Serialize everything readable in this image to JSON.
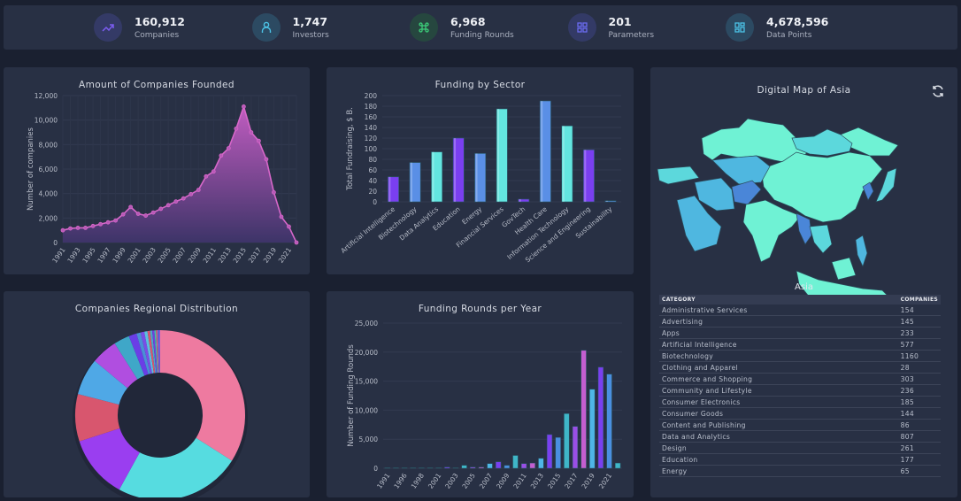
{
  "stats": [
    {
      "value": "160,912",
      "label": "Companies",
      "icon": "trending-up-icon",
      "color": "#7b5cf0",
      "bg": "#343a66"
    },
    {
      "value": "1,747",
      "label": "Investors",
      "icon": "user-icon",
      "color": "#4cc3e6",
      "bg": "#2c4a62"
    },
    {
      "value": "6,968",
      "label": "Funding Rounds",
      "icon": "command-icon",
      "color": "#3ccf7a",
      "bg": "#26473f"
    },
    {
      "value": "201",
      "label": "Parameters",
      "icon": "grid-icon",
      "color": "#6b6cf0",
      "bg": "#333a66"
    },
    {
      "value": "4,678,596",
      "label": "Data Points",
      "icon": "layout-icon",
      "color": "#4cc3e6",
      "bg": "#2c4a62"
    }
  ],
  "map": {
    "title": "Digital Map of Asia",
    "region_label": "Asia",
    "refresh_icon": "refresh-icon"
  },
  "table": {
    "headers": [
      "CATEGORY",
      "COMPANIES"
    ],
    "rows": [
      [
        "Administrative Services",
        "154"
      ],
      [
        "Advertising",
        "145"
      ],
      [
        "Apps",
        "233"
      ],
      [
        "Artificial Intelligence",
        "577"
      ],
      [
        "Biotechnology",
        "1160"
      ],
      [
        "Clothing and Apparel",
        "28"
      ],
      [
        "Commerce and Shopping",
        "303"
      ],
      [
        "Community and Lifestyle",
        "236"
      ],
      [
        "Consumer Electronics",
        "185"
      ],
      [
        "Consumer Goods",
        "144"
      ],
      [
        "Content and Publishing",
        "86"
      ],
      [
        "Data and Analytics",
        "807"
      ],
      [
        "Design",
        "261"
      ],
      [
        "Education",
        "177"
      ],
      [
        "Energy",
        "65"
      ]
    ]
  },
  "chart_data": [
    {
      "type": "area",
      "title": "Amount of Companies Founded",
      "ylabel": "Number of companies",
      "ylim": [
        0,
        12000
      ],
      "yticks": [
        "0",
        "2,000",
        "4,000",
        "6,000",
        "8,000",
        "10,000",
        "12,000"
      ],
      "grid": true,
      "color": "#d667c9",
      "x": [
        1991,
        1992,
        1993,
        1994,
        1995,
        1996,
        1997,
        1998,
        1999,
        2000,
        2001,
        2002,
        2003,
        2004,
        2005,
        2006,
        2007,
        2008,
        2009,
        2010,
        2011,
        2012,
        2013,
        2014,
        2015,
        2016,
        2017,
        2018,
        2019,
        2020,
        2021,
        2022
      ],
      "values": [
        1000,
        1150,
        1200,
        1200,
        1350,
        1500,
        1650,
        1800,
        2300,
        2900,
        2350,
        2200,
        2450,
        2750,
        3050,
        3350,
        3600,
        3950,
        4300,
        5400,
        5800,
        7100,
        7700,
        9300,
        11100,
        9000,
        8300,
        6800,
        4100,
        2100,
        1300,
        0
      ],
      "xticks": [
        "1991",
        "1993",
        "1995",
        "1997",
        "1999",
        "2001",
        "2003",
        "2005",
        "2007",
        "2009",
        "2011",
        "2013",
        "2015",
        "2017",
        "2019",
        "2021"
      ]
    },
    {
      "type": "bar",
      "title": "Funding by Sector",
      "ylabel": "Total Fundraising, $ B.",
      "ylim": [
        0,
        200
      ],
      "yticks": [
        "0",
        "20",
        "40",
        "60",
        "80",
        "100",
        "120",
        "140",
        "160",
        "180",
        "200"
      ],
      "grid": true,
      "categories": [
        "Artificial Intelligence",
        "Biotechnology",
        "Data Analytics",
        "Education",
        "Energy",
        "Financial Services",
        "GovTech",
        "Health Care",
        "Information Technology",
        "Science and Engineering",
        "Sustainability"
      ],
      "values": [
        47,
        74,
        94,
        120,
        91,
        175,
        5,
        190,
        143,
        98,
        2
      ],
      "colors": [
        "#7a3ff0",
        "#5a8fe6",
        "#63e6e0",
        "#7a3ff0",
        "#5a8fe6",
        "#63e6e0",
        "#7a3ff0",
        "#5a8fe6",
        "#63e6e0",
        "#7a3ff0",
        "#5a8fe6"
      ]
    },
    {
      "type": "pie",
      "title": "Companies Regional Distribution",
      "donut": true,
      "values": [
        34,
        24,
        12,
        9,
        7,
        5,
        3,
        1.5,
        0.8,
        0.7,
        0.6,
        0.5,
        0.4,
        0.4,
        0.3,
        0.3,
        0.3,
        0.2
      ],
      "colors": [
        "#ee7aa0",
        "#56dce0",
        "#9a3ef0",
        "#d8566e",
        "#4fa8e6",
        "#b04ee0",
        "#3fa7c8",
        "#6a3ee6",
        "#4a8fd6",
        "#7a4ee6",
        "#5ac0e0",
        "#d8566e",
        "#4ea8c8",
        "#7040e0",
        "#3fc0b0",
        "#d85a80",
        "#5a70e0",
        "#8a50e0"
      ]
    },
    {
      "type": "bar",
      "title": "Funding Rounds per Year",
      "ylabel": "Number of Funding Rounds",
      "ylim": [
        0,
        25000
      ],
      "yticks": [
        "0",
        "5,000",
        "10,000",
        "15,000",
        "20,000",
        "25,000"
      ],
      "grid": true,
      "categories": [
        "1991",
        "1995",
        "1996",
        "1997",
        "1998",
        "2000",
        "2001",
        "2002",
        "2003",
        "2004",
        "2005",
        "2006",
        "2007",
        "2008",
        "2009",
        "2010",
        "2011",
        "2012",
        "2013",
        "2014",
        "2015",
        "2016",
        "2017",
        "2018",
        "2019",
        "2020",
        "2021",
        "2022"
      ],
      "values": [
        20,
        20,
        20,
        20,
        20,
        10,
        0,
        200,
        0,
        500,
        200,
        200,
        800,
        1100,
        500,
        2200,
        800,
        900,
        1700,
        5800,
        5300,
        9400,
        7200,
        20300,
        13600,
        17400,
        16200,
        900
      ],
      "xticks": [
        "1991",
        "1996",
        "1998",
        "2001",
        "2003",
        "2005",
        "2007",
        "2009",
        "2011",
        "2013",
        "2015",
        "2017",
        "2019",
        "2021"
      ],
      "colors": [
        "#4fb6e6",
        "#7a3ff0",
        "#4a8fe0",
        "#3fb6c8",
        "#9a4ee6",
        "#c45ed0"
      ]
    }
  ]
}
